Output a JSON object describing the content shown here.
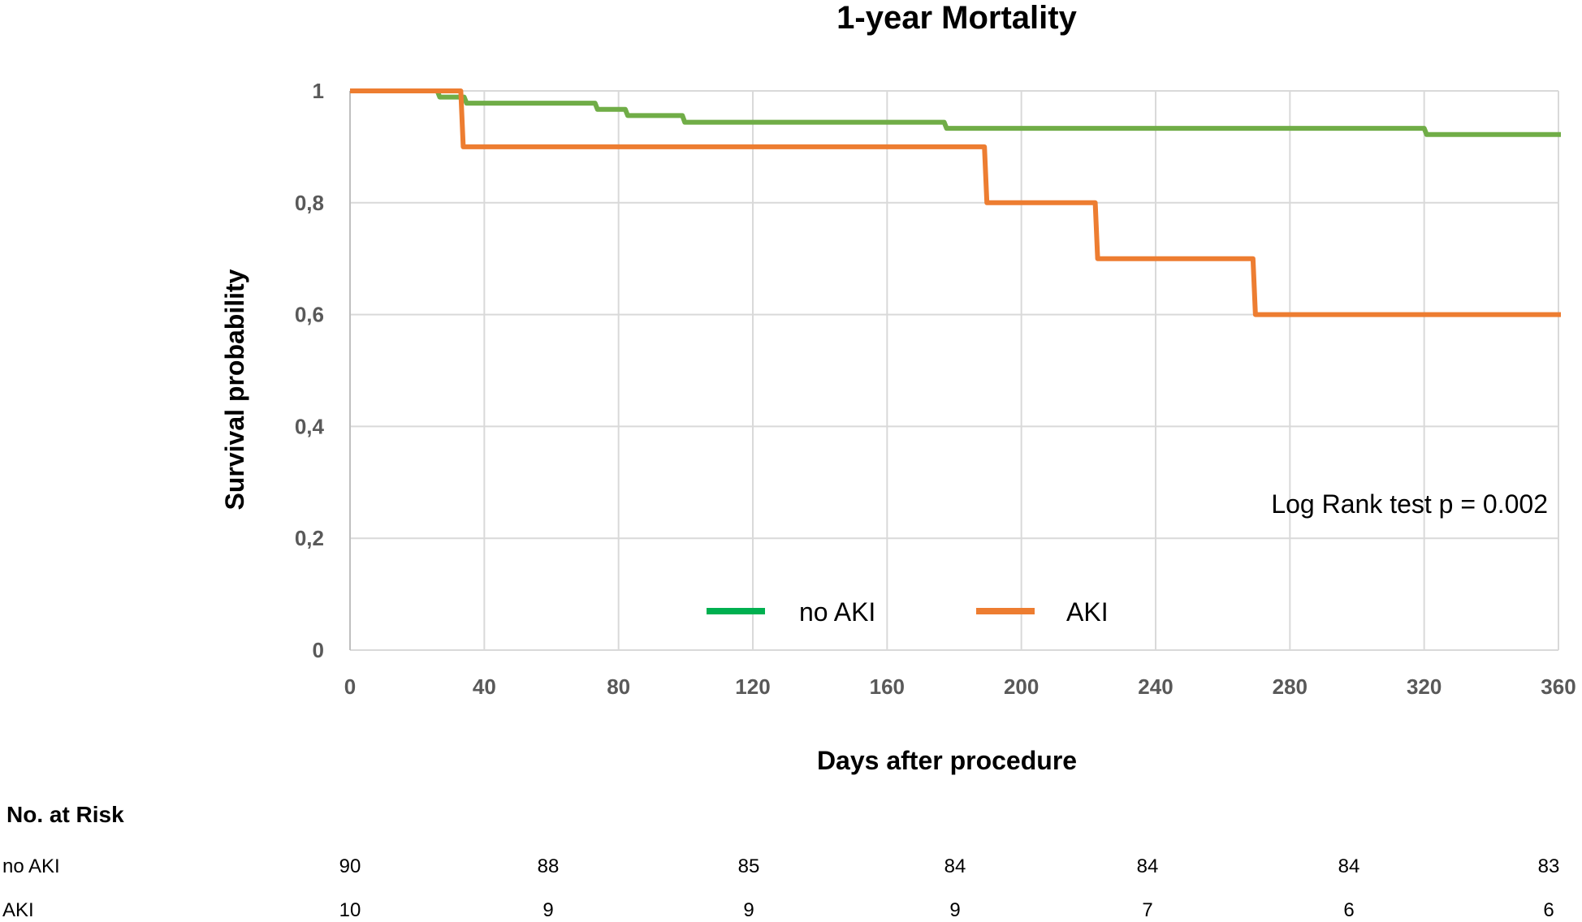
{
  "chart_data": {
    "type": "line",
    "subtype": "kaplan-meier step",
    "title": "1-year Mortality",
    "xlabel": "Days after procedure",
    "ylabel": "Survival probability",
    "xlim": [
      0,
      360
    ],
    "ylim": [
      0,
      1
    ],
    "xticks": [
      "0",
      "40",
      "80",
      "120",
      "160",
      "200",
      "240",
      "280",
      "320",
      "360"
    ],
    "yticks": [
      "0",
      "0,2",
      "0,4",
      "0,6",
      "0,8",
      "1"
    ],
    "grid": true,
    "legend_position": "bottom-center",
    "annotation": "Log Rank test p = 0.002",
    "series": [
      {
        "name": "no AKI",
        "color": "#70ad47",
        "legend_color": "#00b050",
        "steps": [
          [
            0,
            1
          ],
          [
            26,
            0.989
          ],
          [
            34,
            0.978
          ],
          [
            73,
            0.967
          ],
          [
            82,
            0.956
          ],
          [
            99,
            0.944
          ],
          [
            177,
            0.933
          ],
          [
            320,
            0.922
          ],
          [
            360,
            0.922
          ]
        ]
      },
      {
        "name": "AKI",
        "color": "#ed7d31",
        "legend_color": "#ed7d31",
        "steps": [
          [
            0,
            1
          ],
          [
            33,
            0.9
          ],
          [
            189,
            0.8
          ],
          [
            222,
            0.7
          ],
          [
            269,
            0.6
          ],
          [
            360,
            0.6
          ]
        ]
      }
    ]
  },
  "risk_table": {
    "header": "No. at Risk",
    "rows": [
      {
        "label": "no AKI",
        "values": [
          "90",
          "88",
          "85",
          "84",
          "84",
          "84",
          "83"
        ]
      },
      {
        "label": "AKI",
        "values": [
          "10",
          "9",
          "9",
          "9",
          "7",
          "6",
          "6"
        ]
      }
    ]
  }
}
